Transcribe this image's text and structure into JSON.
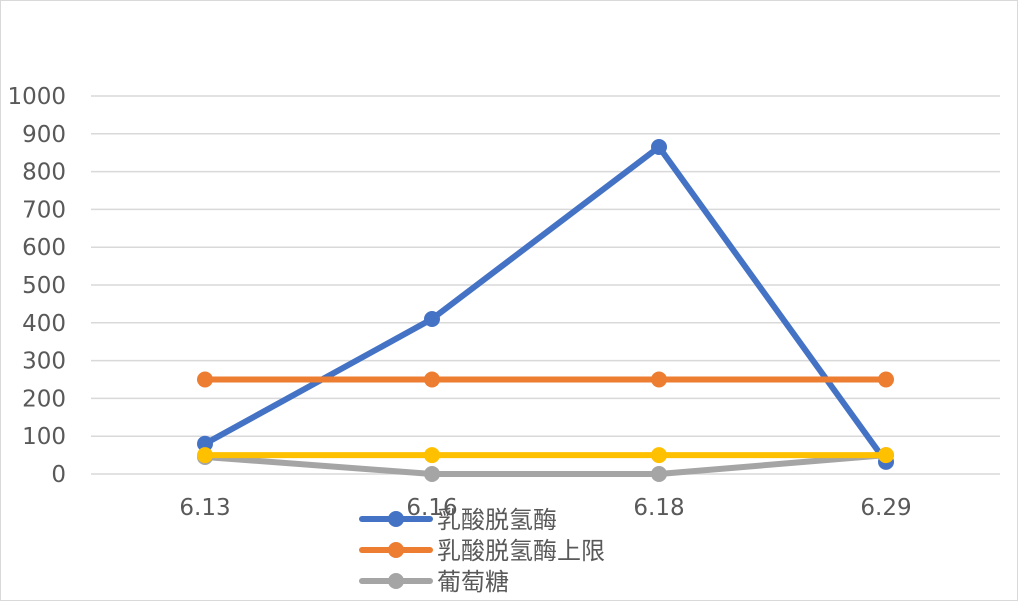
{
  "chart_data": {
    "type": "line",
    "title": "",
    "xlabel": "",
    "ylabel": "",
    "categories": [
      "6.13",
      "6.16",
      "6.18",
      "6.29"
    ],
    "ylim": [
      0,
      1000
    ],
    "yticks": [
      0,
      100,
      200,
      300,
      400,
      500,
      600,
      700,
      800,
      900,
      1000
    ],
    "grid": true,
    "legend_position": "bottom",
    "series": [
      {
        "name": "乳酸脱氢酶",
        "values": [
          80,
          410,
          865,
          32
        ],
        "color": "#4472c4"
      },
      {
        "name": "乳酸脱氢酶上限",
        "values": [
          250,
          250,
          250,
          250
        ],
        "color": "#ed7d31"
      },
      {
        "name": "葡萄糖",
        "values": [
          45,
          0,
          0,
          50
        ],
        "color": "#a5a5a5"
      },
      {
        "name": "",
        "values": [
          50,
          50,
          50,
          50
        ],
        "color": "#ffc000"
      }
    ]
  }
}
